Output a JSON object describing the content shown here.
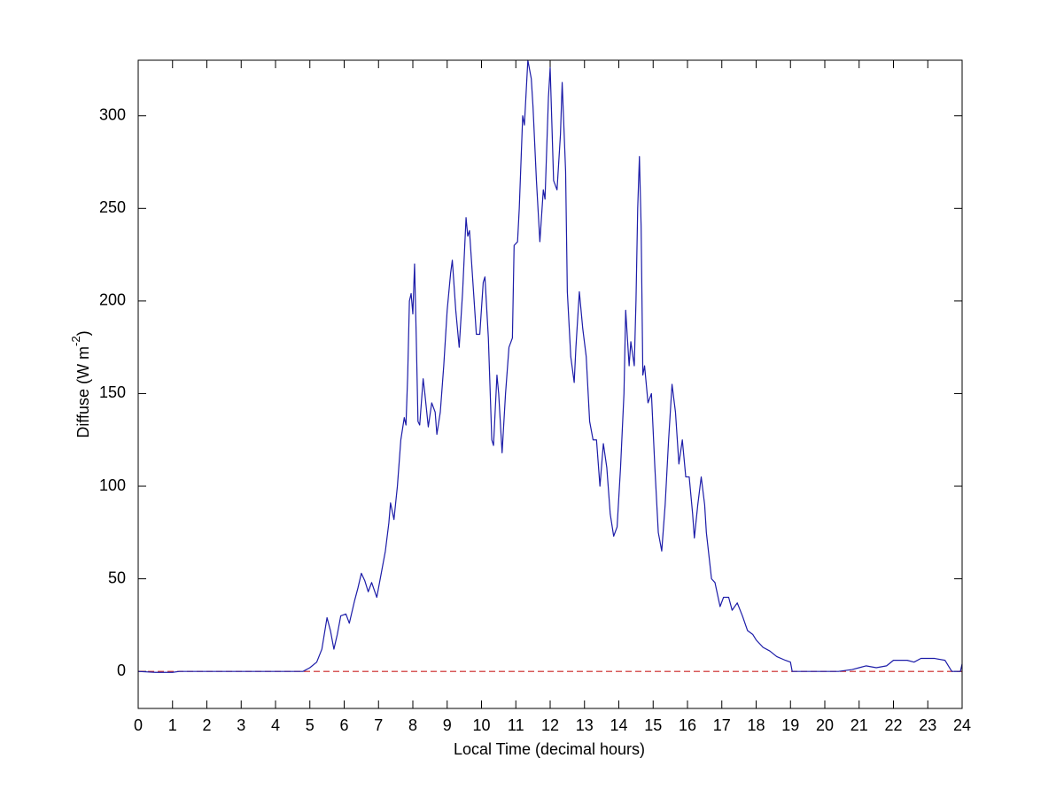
{
  "chart_data": {
    "type": "line",
    "xlabel": "Local Time (decimal hours)",
    "ylabel": [
      "Diffuse (W m",
      "-2",
      ")"
    ],
    "xlim": [
      0,
      24
    ],
    "ylim": [
      -20,
      330
    ],
    "xticks": [
      0,
      1,
      2,
      3,
      4,
      5,
      6,
      7,
      8,
      9,
      10,
      11,
      12,
      13,
      14,
      15,
      16,
      17,
      18,
      19,
      20,
      21,
      22,
      23,
      24
    ],
    "yticks": [
      0,
      50,
      100,
      150,
      200,
      250,
      300
    ],
    "grid": false,
    "reference_line": {
      "value": 0,
      "color": "#cc2222",
      "dashed": true
    },
    "series": [
      {
        "color": "#1c1ca8",
        "x": [
          0,
          0.5,
          1,
          1.2,
          4.8,
          5.0,
          5.2,
          5.35,
          5.5,
          5.6,
          5.7,
          5.8,
          5.9,
          6.05,
          6.15,
          6.3,
          6.4,
          6.5,
          6.6,
          6.7,
          6.8,
          6.95,
          7.1,
          7.2,
          7.3,
          7.35,
          7.45,
          7.55,
          7.65,
          7.75,
          7.8,
          7.85,
          7.9,
          7.95,
          8.0,
          8.05,
          8.1,
          8.15,
          8.2,
          8.3,
          8.35,
          8.45,
          8.55,
          8.65,
          8.7,
          8.8,
          8.9,
          9.0,
          9.1,
          9.15,
          9.25,
          9.35,
          9.45,
          9.55,
          9.6,
          9.65,
          9.75,
          9.85,
          9.95,
          10.05,
          10.1,
          10.2,
          10.3,
          10.35,
          10.45,
          10.5,
          10.6,
          10.7,
          10.8,
          10.9,
          10.95,
          11.05,
          11.1,
          11.2,
          11.25,
          11.35,
          11.45,
          11.5,
          11.6,
          11.7,
          11.8,
          11.85,
          11.95,
          12.0,
          12.1,
          12.2,
          12.3,
          12.35,
          12.45,
          12.5,
          12.6,
          12.7,
          12.75,
          12.85,
          12.95,
          13.05,
          13.15,
          13.25,
          13.35,
          13.45,
          13.55,
          13.65,
          13.75,
          13.85,
          13.95,
          14.05,
          14.15,
          14.2,
          14.3,
          14.35,
          14.45,
          14.5,
          14.55,
          14.6,
          14.65,
          14.7,
          14.75,
          14.85,
          14.95,
          15.05,
          15.15,
          15.25,
          15.35,
          15.45,
          15.55,
          15.65,
          15.75,
          15.85,
          15.95,
          16.05,
          16.15,
          16.2,
          16.3,
          16.4,
          16.5,
          16.55,
          16.7,
          16.8,
          16.95,
          17.05,
          17.2,
          17.3,
          17.45,
          17.6,
          17.75,
          17.9,
          18.0,
          18.2,
          18.4,
          18.6,
          18.85,
          19.0,
          19.05,
          20.4,
          20.8,
          21.0,
          21.2,
          21.5,
          21.8,
          22.0,
          22.4,
          22.6,
          22.8,
          23.2,
          23.5,
          23.6,
          23.7,
          23.95,
          24.0
        ],
        "values": [
          0,
          -0.5,
          -0.5,
          0,
          0,
          2,
          5,
          12,
          29,
          22,
          12,
          20,
          30,
          31,
          26,
          38,
          45,
          53,
          49,
          43,
          48,
          40,
          55,
          65,
          80,
          91,
          82,
          100,
          125,
          137,
          133,
          160,
          200,
          204,
          193,
          220,
          180,
          135,
          133,
          158,
          150,
          132,
          145,
          140,
          128,
          140,
          165,
          195,
          215,
          222,
          195,
          175,
          205,
          245,
          235,
          238,
          210,
          182,
          182,
          210,
          213,
          180,
          125,
          122,
          160,
          150,
          118,
          150,
          175,
          180,
          230,
          232,
          250,
          300,
          295,
          330,
          320,
          305,
          265,
          232,
          260,
          255,
          310,
          326,
          265,
          260,
          290,
          318,
          270,
          205,
          170,
          156,
          175,
          205,
          185,
          170,
          135,
          125,
          125,
          100,
          123,
          110,
          85,
          73,
          78,
          110,
          150,
          195,
          165,
          178,
          165,
          200,
          250,
          278,
          240,
          160,
          165,
          145,
          150,
          110,
          75,
          65,
          90,
          125,
          155,
          140,
          112,
          125,
          105,
          105,
          85,
          72,
          90,
          105,
          90,
          75,
          50,
          48,
          35,
          40,
          40,
          33,
          37,
          30,
          22,
          20,
          17,
          13,
          11,
          8,
          6,
          5,
          0,
          0,
          1,
          2,
          3,
          2,
          3,
          6,
          6,
          5,
          7,
          7,
          6,
          3,
          0,
          0,
          4
        ]
      }
    ]
  }
}
